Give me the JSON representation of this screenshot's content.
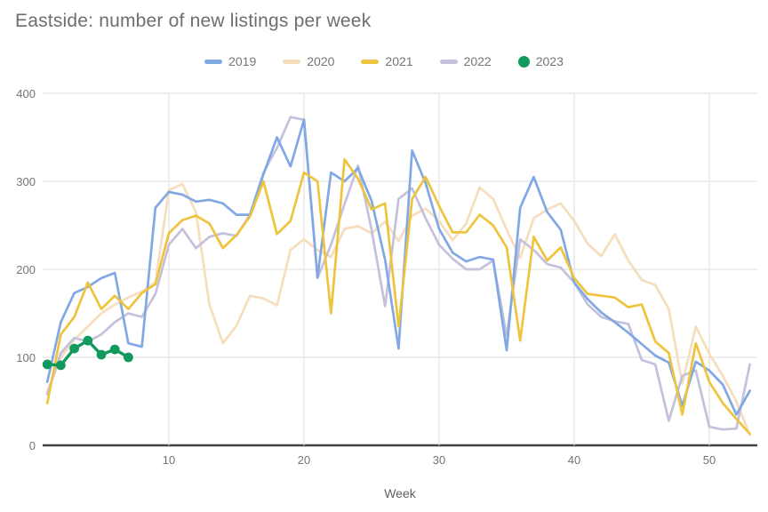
{
  "title": "Eastside: number of new listings per week",
  "x_axis_label": "Week",
  "chart_data": {
    "type": "line",
    "title": "Eastside: number of new listings per week",
    "xlabel": "Week",
    "ylabel": "",
    "xlim": [
      0.5,
      53.6
    ],
    "ylim": [
      0,
      400
    ],
    "x_ticks": [
      10,
      20,
      30,
      40,
      50
    ],
    "y_ticks": [
      0,
      100,
      200,
      300,
      400
    ],
    "grid": true,
    "legend_position": "top-center",
    "series": [
      {
        "name": "2020",
        "color": "#f6ddbd",
        "style": "line",
        "x_start": 1,
        "values": [
          61,
          100,
          120,
          135,
          150,
          160,
          168,
          175,
          185,
          290,
          297,
          265,
          160,
          116,
          136,
          170,
          167,
          159,
          222,
          234,
          222,
          214,
          246,
          249,
          241,
          254,
          232,
          261,
          269,
          255,
          233,
          252,
          293,
          280,
          245,
          213,
          258,
          268,
          275,
          255,
          229,
          215,
          240,
          210,
          188,
          182,
          155,
          70,
          135,
          104,
          79,
          50,
          12
        ]
      },
      {
        "name": "2022",
        "color": "#c4c1dd",
        "style": "line",
        "x_start": 1,
        "values": [
          58,
          105,
          122,
          118,
          126,
          140,
          150,
          146,
          172,
          228,
          246,
          224,
          237,
          241,
          238,
          262,
          310,
          338,
          373,
          370,
          190,
          228,
          274,
          318,
          245,
          158,
          280,
          292,
          258,
          228,
          212,
          200,
          200,
          210,
          124,
          234,
          222,
          206,
          202,
          185,
          160,
          146,
          141,
          138,
          97,
          92,
          28,
          79,
          85,
          21,
          18,
          19,
          92
        ]
      },
      {
        "name": "2019",
        "color": "#82a8e4",
        "style": "line",
        "x_start": 1,
        "values": [
          72,
          140,
          173,
          180,
          190,
          196,
          116,
          112,
          270,
          288,
          285,
          277,
          279,
          275,
          262,
          262,
          308,
          350,
          317,
          370,
          191,
          310,
          300,
          315,
          278,
          211,
          110,
          335,
          298,
          246,
          219,
          209,
          214,
          211,
          108,
          270,
          305,
          265,
          245,
          185,
          166,
          151,
          140,
          128,
          115,
          102,
          94,
          45,
          95,
          85,
          69,
          35,
          62
        ]
      },
      {
        "name": "2021",
        "color": "#eec43c",
        "style": "line",
        "x_start": 1,
        "values": [
          48,
          126,
          146,
          185,
          155,
          170,
          155,
          173,
          183,
          241,
          256,
          261,
          252,
          224,
          239,
          260,
          300,
          240,
          255,
          310,
          300,
          150,
          325,
          303,
          268,
          275,
          135,
          280,
          305,
          272,
          242,
          242,
          262,
          250,
          225,
          119,
          237,
          210,
          225,
          190,
          172,
          170,
          168,
          157,
          160,
          118,
          105,
          35,
          116,
          72,
          48,
          30,
          13
        ]
      },
      {
        "name": "2023",
        "color": "#12995e",
        "style": "line-markers",
        "x_start": 1,
        "values": [
          92,
          91,
          110,
          119,
          103,
          109,
          100
        ]
      }
    ],
    "legend_order": [
      "2019",
      "2020",
      "2021",
      "2022",
      "2023"
    ]
  }
}
